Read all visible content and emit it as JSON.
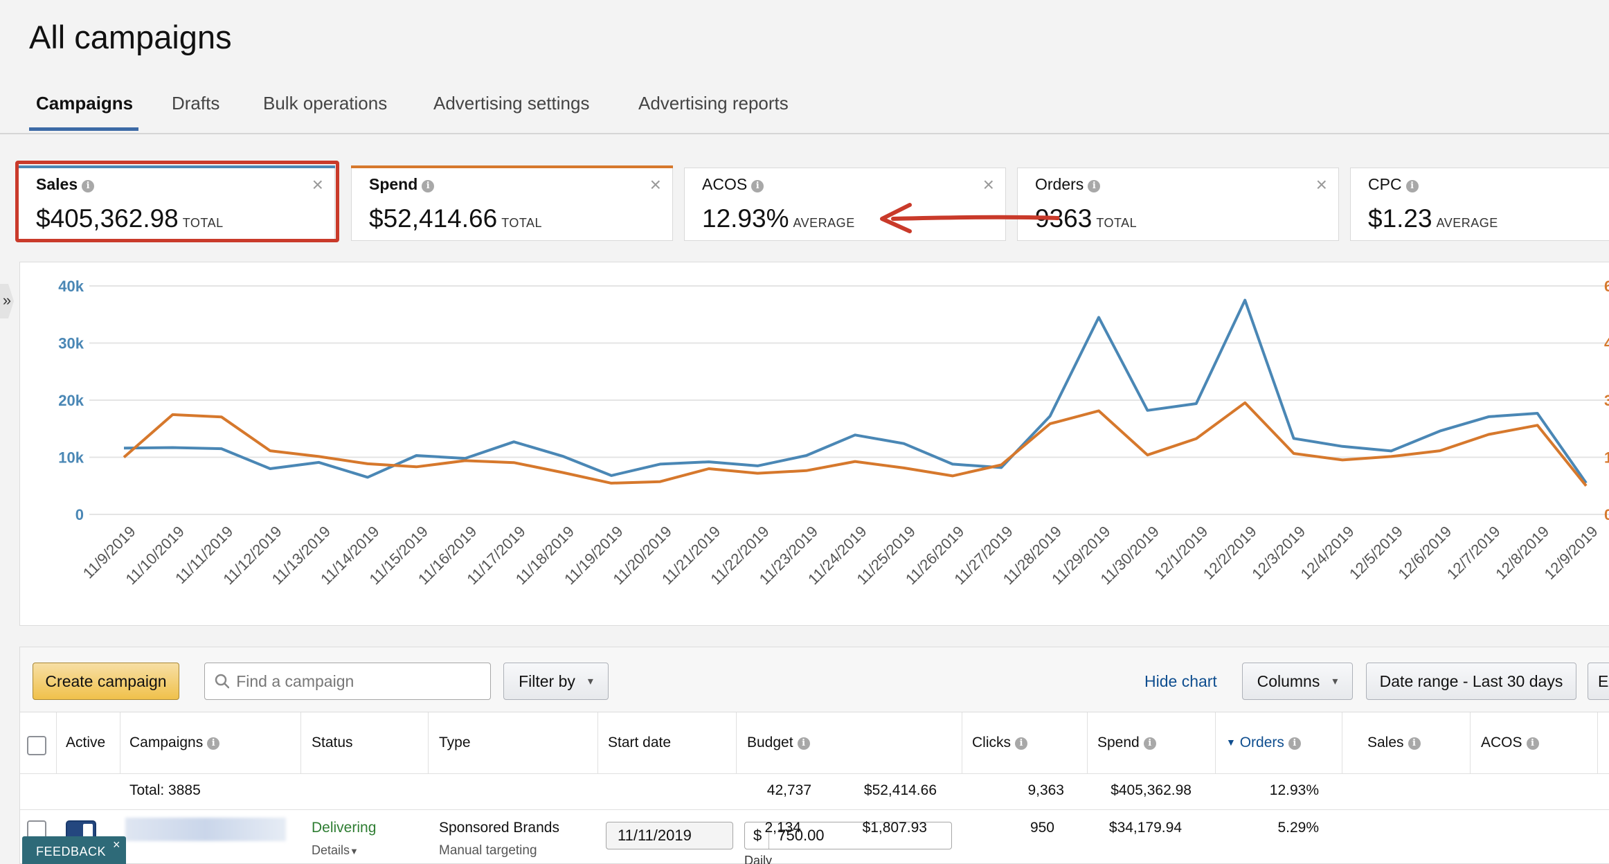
{
  "page": {
    "title": "All campaigns"
  },
  "tabs": [
    {
      "label": "Campaigns",
      "active": true
    },
    {
      "label": "Drafts"
    },
    {
      "label": "Bulk operations"
    },
    {
      "label": "Advertising settings"
    },
    {
      "label": "Advertising reports"
    }
  ],
  "metrics": [
    {
      "label": "Sales",
      "value": "$405,362.98",
      "qualifier": "TOTAL",
      "color": "#4a87b5",
      "selected": true
    },
    {
      "label": "Spend",
      "value": "$52,414.66",
      "qualifier": "TOTAL",
      "color": "#d6782c",
      "selected": true
    },
    {
      "label": "ACOS",
      "value": "12.93%",
      "qualifier": "AVERAGE"
    },
    {
      "label": "Orders",
      "value": "9363",
      "qualifier": "TOTAL"
    },
    {
      "label": "CPC",
      "value": "$1.23",
      "qualifier": "AVERAGE"
    }
  ],
  "chart_data": {
    "type": "line",
    "x": [
      "11/9/2019",
      "11/10/2019",
      "11/11/2019",
      "11/12/2019",
      "11/13/2019",
      "11/14/2019",
      "11/15/2019",
      "11/16/2019",
      "11/17/2019",
      "11/18/2019",
      "11/19/2019",
      "11/20/2019",
      "11/21/2019",
      "11/22/2019",
      "11/23/2019",
      "11/24/2019",
      "11/25/2019",
      "11/26/2019",
      "11/27/2019",
      "11/28/2019",
      "11/29/2019",
      "11/30/2019",
      "12/1/2019",
      "12/2/2019",
      "12/3/2019",
      "12/4/2019",
      "12/5/2019",
      "12/6/2019",
      "12/7/2019",
      "12/8/2019",
      "12/9/2019"
    ],
    "y_left": {
      "ticks": [
        "0",
        "10k",
        "20k",
        "30k",
        "40k"
      ],
      "range": [
        0,
        40000
      ],
      "color": "#4a87b5"
    },
    "y_right": {
      "ticks": [
        "0",
        "1",
        "3",
        "4",
        "6"
      ],
      "range": [
        0,
        6000
      ],
      "color": "#d6782c"
    },
    "series": [
      {
        "name": "Sales",
        "axis": "left",
        "color": "#4a87b5",
        "values": [
          11600,
          11700,
          11500,
          8000,
          9100,
          6500,
          10300,
          9800,
          12700,
          10200,
          6800,
          8800,
          9200,
          8500,
          10300,
          13900,
          12400,
          8800,
          8200,
          17200,
          34500,
          18200,
          19400,
          37500,
          13300,
          11900,
          11100,
          14600,
          17100,
          17700,
          5500
        ]
      },
      {
        "name": "Spend",
        "axis": "right",
        "color": "#d6782c",
        "values": [
          1500,
          2620,
          2560,
          1670,
          1520,
          1330,
          1250,
          1410,
          1360,
          1100,
          820,
          860,
          1200,
          1080,
          1150,
          1390,
          1220,
          1010,
          1300,
          2380,
          2720,
          1560,
          1990,
          2930,
          1600,
          1430,
          1520,
          1670,
          2100,
          2340,
          750
        ]
      }
    ],
    "grid": "horizontal"
  },
  "toolbar": {
    "create_label": "Create campaign",
    "search_placeholder": "Find a campaign",
    "filter_label": "Filter by",
    "hide_chart_label": "Hide chart",
    "columns_label": "Columns",
    "date_range_label": "Date range - Last 30 days",
    "export_label": "Ex"
  },
  "table": {
    "headers": {
      "active": "Active",
      "campaigns": "Campaigns",
      "status": "Status",
      "type": "Type",
      "start_date": "Start date",
      "budget": "Budget",
      "clicks": "Clicks",
      "spend": "Spend",
      "orders": "Orders",
      "sales": "Sales",
      "acos": "ACOS"
    },
    "totals": {
      "label": "Total: 3885",
      "clicks": "42,737",
      "spend": "$52,414.66",
      "orders": "9,363",
      "sales": "$405,362.98",
      "acos": "12.93%"
    },
    "row": {
      "status": "Delivering",
      "details": "Details",
      "type": "Sponsored Brands",
      "targeting": "Manual targeting",
      "start_date": "11/11/2019",
      "currency": "$",
      "budget": "750.00",
      "budget_period": "Daily",
      "clicks": "2,134",
      "spend": "$1,807.93",
      "orders": "950",
      "sales": "$34,179.94",
      "acos": "5.29%"
    }
  },
  "feedback": {
    "label": "FEEDBACK"
  }
}
